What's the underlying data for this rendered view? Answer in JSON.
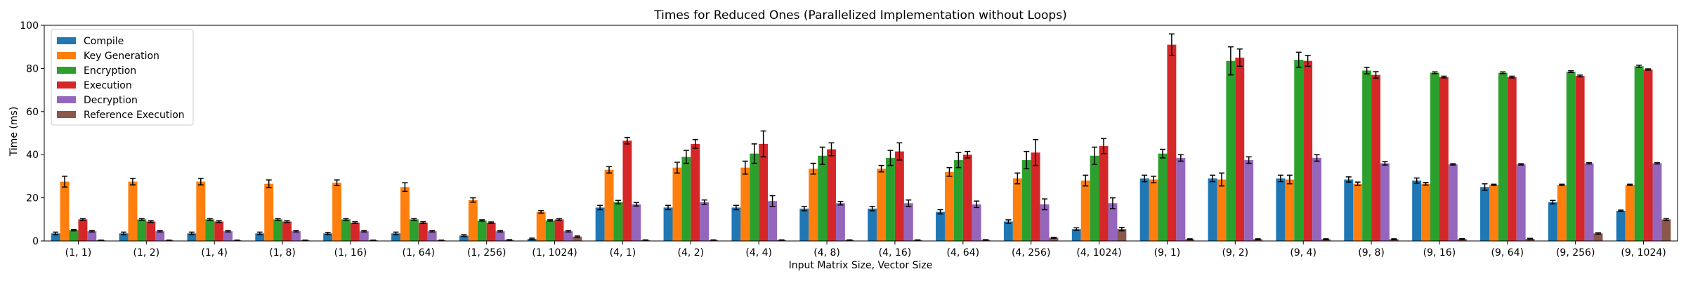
{
  "chart_data": {
    "type": "bar",
    "title": "Times for Reduced Ones (Parallelized Implementation without Loops)",
    "xlabel": "Input Matrix Size, Vector Size",
    "ylabel": "Time (ms)",
    "ylim": [
      0,
      100
    ],
    "yticks": [
      0,
      20,
      40,
      60,
      80,
      100
    ],
    "legend_position": "top-left",
    "categories": [
      "(1, 1)",
      "(1, 2)",
      "(1, 4)",
      "(1, 8)",
      "(1, 16)",
      "(1, 64)",
      "(1, 256)",
      "(1, 1024)",
      "(4, 1)",
      "(4, 2)",
      "(4, 4)",
      "(4, 8)",
      "(4, 16)",
      "(4, 64)",
      "(4, 256)",
      "(4, 1024)",
      "(9, 1)",
      "(9, 2)",
      "(9, 4)",
      "(9, 8)",
      "(9, 16)",
      "(9, 64)",
      "(9, 256)",
      "(9, 1024)"
    ],
    "series": [
      {
        "name": "Compile",
        "color": "#1f77b4",
        "values": [
          3.5,
          3.5,
          3.5,
          3.5,
          3.5,
          3.5,
          2.5,
          1.0,
          15.5,
          15.5,
          15.5,
          15.0,
          15.0,
          13.5,
          9.0,
          5.5,
          29.0,
          29.0,
          29.0,
          28.5,
          28.0,
          25.0,
          18.0,
          14.0
        ],
        "errors": [
          0.6,
          0.6,
          0.6,
          0.6,
          0.5,
          0.6,
          0.4,
          0.3,
          1.0,
          1.0,
          1.0,
          1.0,
          1.0,
          1.0,
          0.8,
          0.6,
          1.5,
          1.5,
          1.5,
          1.2,
          1.2,
          1.5,
          0.8,
          0.3
        ]
      },
      {
        "name": "Key Generation",
        "color": "#ff7f0e",
        "values": [
          27.5,
          27.5,
          27.5,
          26.5,
          27.0,
          25.0,
          19.0,
          13.5,
          33.0,
          34.0,
          34.0,
          33.5,
          33.5,
          32.0,
          29.0,
          28.0,
          28.5,
          28.5,
          28.5,
          26.5,
          26.5,
          26.0,
          26.0,
          26.0
        ],
        "errors": [
          2.5,
          1.5,
          1.5,
          1.8,
          1.3,
          2.0,
          1.0,
          0.6,
          1.5,
          2.5,
          3.0,
          2.5,
          1.5,
          2.0,
          2.5,
          2.5,
          1.5,
          3.0,
          2.0,
          0.8,
          0.6,
          0.3,
          0.3,
          0.3
        ]
      },
      {
        "name": "Encryption",
        "color": "#2ca02c",
        "values": [
          5.0,
          10.0,
          10.0,
          10.0,
          10.0,
          10.0,
          9.5,
          9.5,
          18.0,
          39.0,
          40.5,
          39.5,
          38.5,
          37.5,
          37.5,
          39.5,
          40.5,
          83.5,
          84.0,
          79.0,
          78.0,
          78.0,
          78.5,
          81.0
        ],
        "errors": [
          0.3,
          0.4,
          0.4,
          0.4,
          0.4,
          0.4,
          0.3,
          0.3,
          0.8,
          3.0,
          4.5,
          4.0,
          3.5,
          3.5,
          4.0,
          4.0,
          2.0,
          6.5,
          3.5,
          1.5,
          0.4,
          0.4,
          0.4,
          0.5
        ]
      },
      {
        "name": "Execution",
        "color": "#d62728",
        "values": [
          10.0,
          9.0,
          9.0,
          9.0,
          8.5,
          8.5,
          8.5,
          10.0,
          46.5,
          45.0,
          45.0,
          42.5,
          41.5,
          40.0,
          41.0,
          44.0,
          91.0,
          85.0,
          83.5,
          77.0,
          76.0,
          76.0,
          76.5,
          79.5
        ],
        "errors": [
          0.4,
          0.4,
          0.4,
          0.4,
          0.4,
          0.4,
          0.3,
          0.4,
          1.5,
          2.0,
          6.0,
          3.0,
          4.0,
          1.5,
          6.0,
          3.5,
          5.0,
          4.0,
          2.5,
          1.5,
          0.4,
          0.4,
          0.4,
          0.3
        ]
      },
      {
        "name": "Decryption",
        "color": "#9467bd",
        "values": [
          4.5,
          4.5,
          4.5,
          4.5,
          4.5,
          4.5,
          4.5,
          4.5,
          17.0,
          18.0,
          18.5,
          17.5,
          17.5,
          17.0,
          17.0,
          17.5,
          38.5,
          37.5,
          38.5,
          36.0,
          35.5,
          35.5,
          36.0,
          36.0
        ],
        "errors": [
          0.3,
          0.3,
          0.3,
          0.3,
          0.3,
          0.3,
          0.3,
          0.3,
          0.8,
          1.0,
          2.5,
          0.8,
          1.5,
          1.5,
          2.5,
          2.5,
          1.5,
          1.5,
          1.5,
          0.8,
          0.3,
          0.3,
          0.3,
          0.3
        ]
      },
      {
        "name": "Reference Execution",
        "color": "#8c564b",
        "values": [
          0.3,
          0.3,
          0.3,
          0.3,
          0.3,
          0.3,
          0.5,
          2.0,
          0.4,
          0.4,
          0.4,
          0.4,
          0.4,
          0.5,
          1.5,
          5.5,
          0.8,
          0.8,
          0.8,
          0.8,
          0.9,
          1.0,
          3.5,
          10.0
        ],
        "errors": [
          0.1,
          0.1,
          0.1,
          0.1,
          0.1,
          0.1,
          0.1,
          0.3,
          0.1,
          0.1,
          0.1,
          0.1,
          0.1,
          0.1,
          0.2,
          0.8,
          0.2,
          0.2,
          0.2,
          0.2,
          0.2,
          0.2,
          0.3,
          0.4
        ]
      }
    ]
  }
}
